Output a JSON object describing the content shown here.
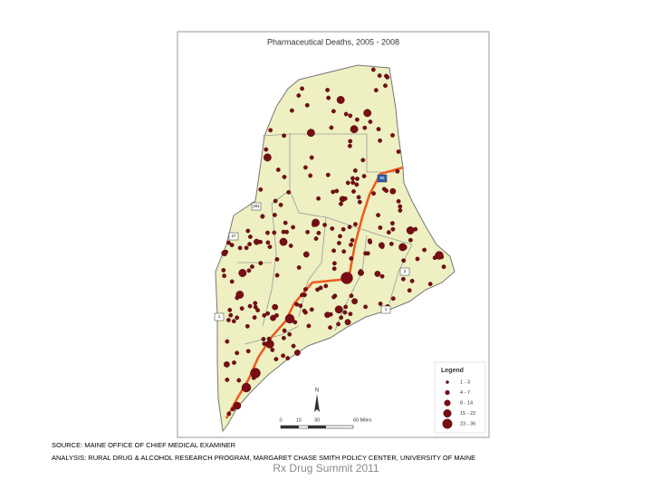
{
  "map": {
    "title": "Pharmaceutical Deaths, 2005 - 2008",
    "legend": {
      "title": "Legend",
      "classes": [
        "1 - 3",
        "4 - 7",
        "8 - 14",
        "15 - 22",
        "23 - 36"
      ]
    },
    "scale_bar": [
      "0",
      "15",
      "30",
      "60 Miles"
    ],
    "north": "N",
    "highway_shields": [
      "95",
      "201",
      "27",
      "1",
      "2",
      "1"
    ]
  },
  "source": [
    "SOURCE: MAINE OFFICE OF CHIEF MEDICAL EXAMINER",
    "ANALYSIS: RURAL DRUG & ALCOHOL RESEARCH PROGRAM, MARGARET CHASE SMITH POLICY CENTER, UNIVERSITY OF MAINE"
  ],
  "footer": "Rx Drug Summit 2011"
}
